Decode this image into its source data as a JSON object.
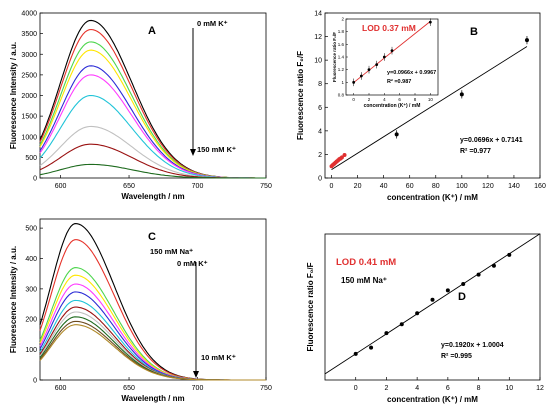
{
  "chart_data": [
    {
      "panel": "A",
      "type": "line",
      "xlabel": "Wavelength / nm",
      "ylabel": "Fluorescence Intensity / a.u.",
      "xlim": [
        585,
        750
      ],
      "ylim": [
        0,
        4000
      ],
      "xticks": [
        600,
        650,
        700,
        750
      ],
      "yticks": [
        0,
        500,
        1000,
        1500,
        2000,
        2500,
        3000,
        3500,
        4000
      ],
      "grid": false,
      "annotations": [
        "0 mM K⁺",
        "150 mM K⁺"
      ],
      "peak_wavelength": 622,
      "series": [
        {
          "color": "#000000",
          "peak": 3820
        },
        {
          "color": "#e6332a",
          "peak": 3600
        },
        {
          "color": "#4ed64e",
          "peak": 3300
        },
        {
          "color": "#ffe600",
          "peak": 3100
        },
        {
          "color": "#2b2bd6",
          "peak": 2720
        },
        {
          "color": "#ff3bff",
          "peak": 2500
        },
        {
          "color": "#20c4d8",
          "peak": 2000
        },
        {
          "color": "#c0c0c0",
          "peak": 1250
        },
        {
          "color": "#9a1212",
          "peak": 820
        },
        {
          "color": "#1f6b1f",
          "peak": 330
        }
      ]
    },
    {
      "panel": "B",
      "type": "scatter",
      "xlabel": "concentration (K⁺) / mM",
      "ylabel": "Fluorescence ratio F₀/F",
      "xlim": [
        -5,
        160
      ],
      "ylim": [
        0,
        14
      ],
      "xticks": [
        0,
        20,
        40,
        60,
        80,
        100,
        120,
        140,
        160
      ],
      "yticks": [
        0,
        2,
        4,
        6,
        8,
        10,
        12,
        14
      ],
      "equation": "y=0.0696x + 0.7141",
      "r2": "R² =0.977",
      "fit": {
        "slope": 0.0696,
        "intercept": 0.7141,
        "x_range": [
          0,
          150
        ]
      },
      "points": [
        {
          "x": 0,
          "y": 1.0
        },
        {
          "x": 1,
          "y": 1.1
        },
        {
          "x": 2,
          "y": 1.2
        },
        {
          "x": 3,
          "y": 1.3
        },
        {
          "x": 4,
          "y": 1.4
        },
        {
          "x": 5,
          "y": 1.5
        },
        {
          "x": 6,
          "y": 1.6
        },
        {
          "x": 7,
          "y": 1.65
        },
        {
          "x": 8,
          "y": 1.75
        },
        {
          "x": 10,
          "y": 1.95
        },
        {
          "x": 50,
          "y": 3.7
        },
        {
          "x": 100,
          "y": 7.1
        },
        {
          "x": 150,
          "y": 11.7
        }
      ],
      "point_colors": {
        "low": "#e03030",
        "high": "#000000"
      },
      "inset": {
        "title": "LOD 0.37 mM",
        "xlabel": "concentration (K⁺) / mM",
        "ylabel": "Fluorescence ratio F₀/F",
        "xlim": [
          -1,
          11
        ],
        "ylim": [
          0.8,
          2.0
        ],
        "xticks": [
          0,
          2,
          4,
          6,
          8,
          10
        ],
        "yticks": [
          0.8,
          1.0,
          1.2,
          1.4,
          1.6,
          1.8,
          2.0
        ],
        "equation": "y=0.0966x + 0.9967",
        "r2": "R² =0.987",
        "fit": {
          "slope": 0.0966,
          "intercept": 0.9967,
          "x_range": [
            0,
            10
          ]
        },
        "points": [
          {
            "x": 0,
            "y": 1.0
          },
          {
            "x": 1,
            "y": 1.1
          },
          {
            "x": 2,
            "y": 1.2
          },
          {
            "x": 3,
            "y": 1.28
          },
          {
            "x": 4,
            "y": 1.4
          },
          {
            "x": 5,
            "y": 1.5
          },
          {
            "x": 10,
            "y": 1.95
          }
        ]
      }
    },
    {
      "panel": "C",
      "type": "line",
      "xlabel": "Wavelength / nm",
      "ylabel": "Fluorescence Intensity / a.u.",
      "xlim": [
        585,
        750
      ],
      "ylim": [
        0,
        530
      ],
      "xticks": [
        600,
        650,
        700,
        750
      ],
      "yticks": [
        0,
        100,
        200,
        300,
        400,
        500
      ],
      "grid": false,
      "annotations": [
        "150 mM Na⁺",
        "0 mM K⁺",
        "10 mM K⁺"
      ],
      "peak_wavelength": 611,
      "series": [
        {
          "color": "#000000",
          "peak": 515
        },
        {
          "color": "#e6332a",
          "peak": 462
        },
        {
          "color": "#4ed64e",
          "peak": 370
        },
        {
          "color": "#ffe600",
          "peak": 345
        },
        {
          "color": "#ff3bff",
          "peak": 316
        },
        {
          "color": "#2b2bd6",
          "peak": 290
        },
        {
          "color": "#20c4d8",
          "peak": 262
        },
        {
          "color": "#9a1212",
          "peak": 240
        },
        {
          "color": "#c0c0c0",
          "peak": 224
        },
        {
          "color": "#1f6b1f",
          "peak": 208
        },
        {
          "color": "#6b4a1f",
          "peak": 193
        },
        {
          "color": "#b08a2a",
          "peak": 182
        }
      ]
    },
    {
      "panel": "D",
      "type": "scatter",
      "title": "LOD 0.41 mM",
      "subtitle": "150 mM Na⁺",
      "xlabel": "concentration (K⁺) / mM",
      "ylabel": "Fluorescence ratio F₀/F",
      "xlim": [
        -2,
        12
      ],
      "ylim": [
        0.5,
        3.3
      ],
      "xticks": [
        0,
        2,
        4,
        6,
        8,
        10,
        12
      ],
      "yticks": [],
      "equation": "y=0.1920x + 1.0004",
      "r2": "R² =0.995",
      "fit": {
        "slope": 0.192,
        "intercept": 1.0004,
        "x_range": [
          -2,
          12
        ]
      },
      "points": [
        {
          "x": 0,
          "y": 1.0
        },
        {
          "x": 1,
          "y": 1.12
        },
        {
          "x": 2,
          "y": 1.4
        },
        {
          "x": 3,
          "y": 1.57
        },
        {
          "x": 4,
          "y": 1.78
        },
        {
          "x": 5,
          "y": 2.04
        },
        {
          "x": 6,
          "y": 2.22
        },
        {
          "x": 7,
          "y": 2.34
        },
        {
          "x": 8,
          "y": 2.52
        },
        {
          "x": 9,
          "y": 2.69
        },
        {
          "x": 10,
          "y": 2.9
        }
      ]
    }
  ]
}
